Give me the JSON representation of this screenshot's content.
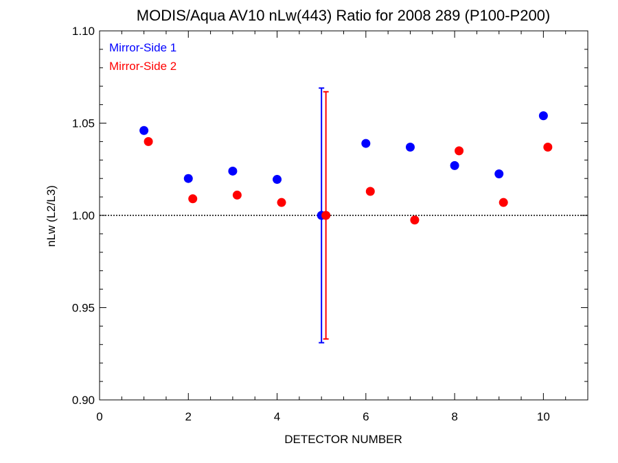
{
  "chart_data": {
    "type": "scatter",
    "title": "MODIS/Aqua AV10 nLw(443) Ratio for 2008 289 (P100-P200)",
    "xlabel": "DETECTOR NUMBER",
    "ylabel": "nLw (L2/L3)",
    "xlim": [
      0,
      11
    ],
    "ylim": [
      0.9,
      1.1
    ],
    "x_ticks": [
      0,
      2,
      4,
      6,
      8,
      10
    ],
    "x_tick_labels": [
      "0",
      "2",
      "4",
      "6",
      "8",
      "10"
    ],
    "y_ticks": [
      0.9,
      0.95,
      1.0,
      1.05,
      1.1
    ],
    "y_tick_labels": [
      "0.90",
      "0.95",
      "1.00",
      "1.05",
      "1.10"
    ],
    "reference_line": 1.0,
    "legend_position": "top-left",
    "series": [
      {
        "name": "Mirror-Side 1",
        "color": "#0000ff",
        "x": [
          1,
          2,
          3,
          4,
          5,
          6,
          7,
          8,
          9,
          10
        ],
        "y": [
          1.046,
          1.02,
          1.024,
          1.0195,
          1.0,
          1.039,
          1.037,
          1.027,
          1.0225,
          1.054
        ],
        "error_bar": {
          "x": 5,
          "low": 0.931,
          "high": 1.069
        }
      },
      {
        "name": "Mirror-Side 2",
        "color": "#ff0000",
        "x": [
          1.1,
          2.1,
          3.1,
          4.1,
          5.1,
          6.1,
          7.1,
          8.1,
          9.1,
          10.1
        ],
        "y": [
          1.04,
          1.009,
          1.011,
          1.007,
          1.0,
          1.013,
          0.9975,
          1.035,
          1.007,
          1.037
        ],
        "error_bar": {
          "x": 5.1,
          "low": 0.933,
          "high": 1.067
        }
      }
    ]
  }
}
